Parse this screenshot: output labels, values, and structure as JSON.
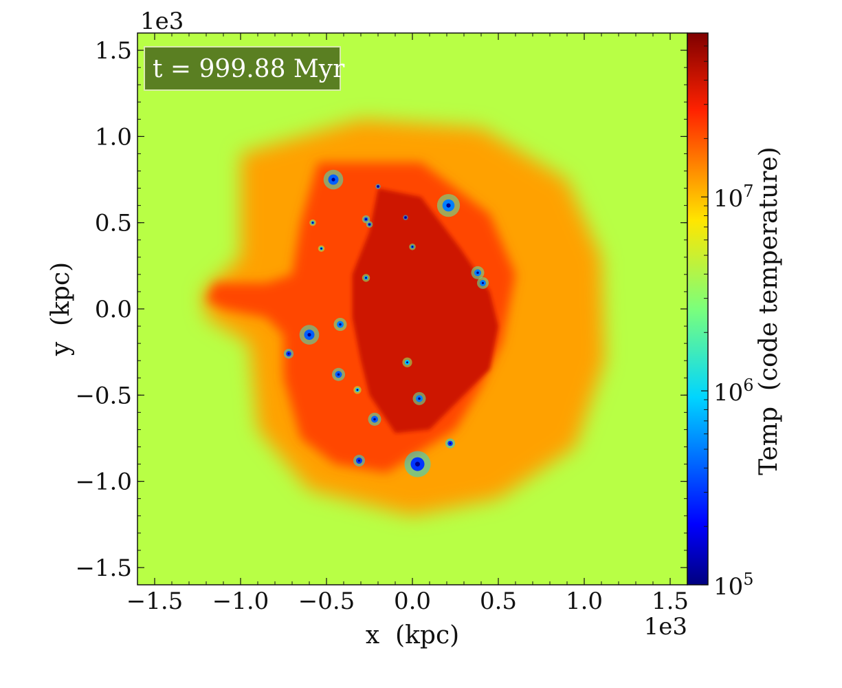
{
  "chart_data": {
    "type": "heatmap",
    "title": "",
    "annotation": "t = 999.88 Myr",
    "xlabel": "x  (kpc)",
    "ylabel": "y  (kpc)",
    "x_offset_label": "1e3",
    "y_offset_label": "1e3",
    "xlim": [
      -1.6,
      1.6
    ],
    "ylim": [
      -1.6,
      1.6
    ],
    "x_ticks": [
      {
        "value": -1.5,
        "label": "−1.5"
      },
      {
        "value": -1.0,
        "label": "−1.0"
      },
      {
        "value": -0.5,
        "label": "−0.5"
      },
      {
        "value": 0.0,
        "label": "0.0"
      },
      {
        "value": 0.5,
        "label": "0.5"
      },
      {
        "value": 1.0,
        "label": "1.0"
      },
      {
        "value": 1.5,
        "label": "1.5"
      }
    ],
    "y_ticks": [
      {
        "value": 1.5,
        "label": "1.5"
      },
      {
        "value": 1.0,
        "label": "1.0"
      },
      {
        "value": 0.5,
        "label": "0.5"
      },
      {
        "value": 0.0,
        "label": "0.0"
      },
      {
        "value": -0.5,
        "label": "−0.5"
      },
      {
        "value": -1.0,
        "label": "−1.0"
      },
      {
        "value": -1.5,
        "label": "−1.5"
      }
    ],
    "colorbar": {
      "label": "Temp  (code temperature)",
      "scale": "log",
      "range": [
        100000,
        70000000
      ],
      "colormap": "jet",
      "ticks": [
        {
          "value": 100000,
          "base": "10",
          "exp": "5"
        },
        {
          "value": 1000000,
          "base": "10",
          "exp": "6"
        },
        {
          "value": 10000000,
          "base": "10",
          "exp": "7"
        }
      ]
    },
    "colors": {
      "background_field": "#b8ff45",
      "annotation_box": "#5a7f22",
      "hot_core": "#e8280a",
      "warm_shell": "#ffb400"
    },
    "structures": {
      "outer_shell": {
        "path": [
          [
            -1.0,
            0.9
          ],
          [
            -0.3,
            1.1
          ],
          [
            0.4,
            1.05
          ],
          [
            0.9,
            0.75
          ],
          [
            1.1,
            0.3
          ],
          [
            1.12,
            -0.3
          ],
          [
            0.95,
            -0.8
          ],
          [
            0.5,
            -1.1
          ],
          [
            0.0,
            -1.2
          ],
          [
            -0.6,
            -1.05
          ],
          [
            -0.9,
            -0.7
          ],
          [
            -0.95,
            -0.2
          ],
          [
            -1.2,
            -0.05
          ],
          [
            -1.22,
            0.1
          ],
          [
            -1.0,
            0.3
          ],
          [
            -1.0,
            0.9
          ]
        ],
        "temp": 12000000
      },
      "mid_region": {
        "path": [
          [
            -0.55,
            0.85
          ],
          [
            0.05,
            0.85
          ],
          [
            0.45,
            0.55
          ],
          [
            0.6,
            0.2
          ],
          [
            0.52,
            -0.2
          ],
          [
            0.4,
            -0.45
          ],
          [
            0.25,
            -0.7
          ],
          [
            -0.15,
            -0.95
          ],
          [
            -0.45,
            -0.9
          ],
          [
            -0.65,
            -0.75
          ],
          [
            -0.75,
            -0.4
          ],
          [
            -0.75,
            -0.15
          ],
          [
            -0.85,
            -0.05
          ],
          [
            -1.1,
            0.0
          ],
          [
            -1.2,
            0.05
          ],
          [
            -1.15,
            0.15
          ],
          [
            -0.85,
            0.15
          ],
          [
            -0.7,
            0.2
          ],
          [
            -0.65,
            0.5
          ],
          [
            -0.55,
            0.85
          ]
        ],
        "temp": 22000000
      },
      "hot_core": {
        "path": [
          [
            -0.2,
            0.7
          ],
          [
            0.05,
            0.65
          ],
          [
            0.28,
            0.35
          ],
          [
            0.45,
            0.1
          ],
          [
            0.5,
            -0.1
          ],
          [
            0.45,
            -0.35
          ],
          [
            0.3,
            -0.5
          ],
          [
            0.1,
            -0.7
          ],
          [
            -0.1,
            -0.72
          ],
          [
            -0.25,
            -0.5
          ],
          [
            -0.3,
            -0.3
          ],
          [
            -0.35,
            -0.05
          ],
          [
            -0.35,
            0.2
          ],
          [
            -0.25,
            0.45
          ],
          [
            -0.2,
            0.7
          ]
        ],
        "temp": 40000000
      },
      "cold_clumps": [
        {
          "x": -0.46,
          "y": 0.75,
          "r": 0.03,
          "temp": 400000
        },
        {
          "x": 0.21,
          "y": 0.6,
          "r": 0.035,
          "temp": 500000
        },
        {
          "x": -0.6,
          "y": -0.15,
          "r": 0.03,
          "temp": 400000
        },
        {
          "x": -0.72,
          "y": -0.26,
          "r": 0.015,
          "temp": 300000
        },
        {
          "x": -0.43,
          "y": -0.38,
          "r": 0.02,
          "temp": 400000
        },
        {
          "x": -0.42,
          "y": -0.09,
          "r": 0.02,
          "temp": 500000
        },
        {
          "x": -0.31,
          "y": -0.88,
          "r": 0.018,
          "temp": 300000
        },
        {
          "x": 0.03,
          "y": -0.9,
          "r": 0.04,
          "temp": 300000
        },
        {
          "x": -0.22,
          "y": -0.64,
          "r": 0.02,
          "temp": 400000
        },
        {
          "x": 0.04,
          "y": -0.52,
          "r": 0.02,
          "temp": 500000
        },
        {
          "x": 0.22,
          "y": -0.78,
          "r": 0.015,
          "temp": 300000
        },
        {
          "x": 0.38,
          "y": 0.21,
          "r": 0.02,
          "temp": 500000
        },
        {
          "x": 0.41,
          "y": 0.15,
          "r": 0.018,
          "temp": 500000
        },
        {
          "x": -0.27,
          "y": 0.52,
          "r": 0.012,
          "temp": 400000
        },
        {
          "x": -0.25,
          "y": 0.49,
          "r": 0.01,
          "temp": 400000
        },
        {
          "x": -0.2,
          "y": 0.71,
          "r": 0.008,
          "temp": 200000
        },
        {
          "x": -0.04,
          "y": 0.53,
          "r": 0.008,
          "temp": 200000
        },
        {
          "x": 0.0,
          "y": 0.36,
          "r": 0.01,
          "temp": 600000
        },
        {
          "x": -0.58,
          "y": 0.5,
          "r": 0.01,
          "temp": 800000
        },
        {
          "x": -0.27,
          "y": 0.18,
          "r": 0.012,
          "temp": 700000
        },
        {
          "x": -0.03,
          "y": -0.31,
          "r": 0.015,
          "temp": 800000
        },
        {
          "x": -0.32,
          "y": -0.47,
          "r": 0.012,
          "temp": 900000
        },
        {
          "x": -0.53,
          "y": 0.35,
          "r": 0.01,
          "temp": 900000
        }
      ]
    }
  }
}
